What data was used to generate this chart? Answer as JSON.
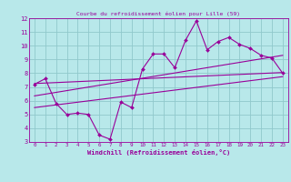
{
  "title": "Courbe du refroidissement éolien pour Lille (59)",
  "xlabel": "Windchill (Refroidissement éolien,°C)",
  "xlim": [
    -0.5,
    23.5
  ],
  "ylim": [
    3,
    12
  ],
  "xticks": [
    0,
    1,
    2,
    3,
    4,
    5,
    6,
    7,
    8,
    9,
    10,
    11,
    12,
    13,
    14,
    15,
    16,
    17,
    18,
    19,
    20,
    21,
    22,
    23
  ],
  "yticks": [
    3,
    4,
    5,
    6,
    7,
    8,
    9,
    10,
    11,
    12
  ],
  "background_color": "#b8e8ea",
  "grid_color": "#90c8cc",
  "line_color": "#990099",
  "data_x": [
    0,
    1,
    2,
    3,
    4,
    5,
    6,
    7,
    8,
    9,
    10,
    11,
    12,
    13,
    14,
    15,
    16,
    17,
    18,
    19,
    20,
    21,
    22,
    23
  ],
  "data_y": [
    7.2,
    7.6,
    5.8,
    5.0,
    5.1,
    5.0,
    3.5,
    3.2,
    5.9,
    5.5,
    8.3,
    9.4,
    9.4,
    8.4,
    10.4,
    11.8,
    9.7,
    10.3,
    10.6,
    10.1,
    9.8,
    9.3,
    9.1,
    8.0
  ],
  "trend1_x": [
    0,
    23
  ],
  "trend1_y": [
    7.25,
    8.05
  ],
  "trend2_x": [
    0,
    23
  ],
  "trend2_y": [
    6.35,
    9.3
  ],
  "trend3_x": [
    0,
    23
  ],
  "trend3_y": [
    5.5,
    7.75
  ]
}
